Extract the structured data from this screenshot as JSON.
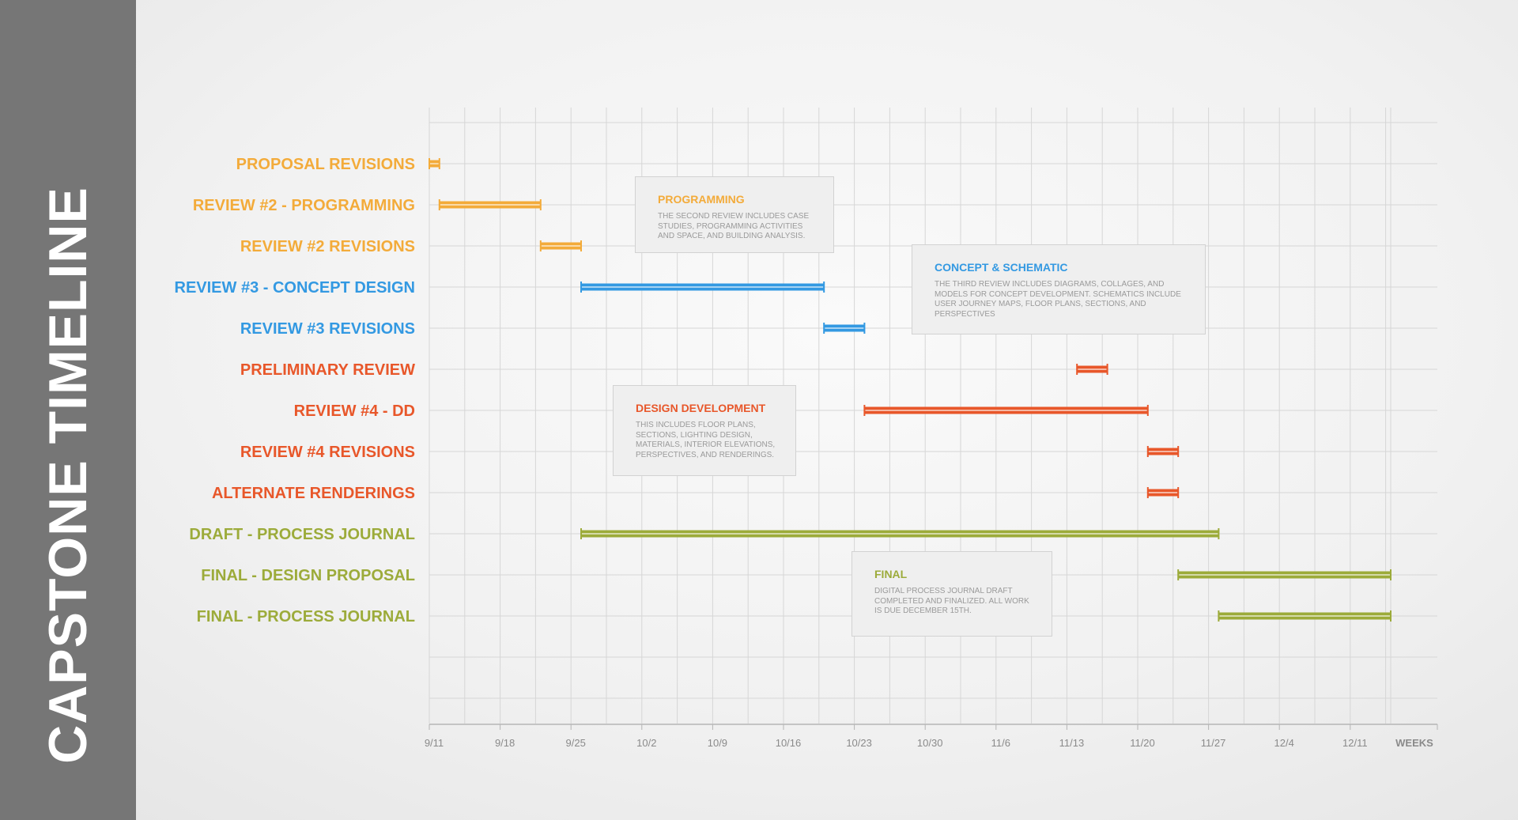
{
  "page_title": "CAPSTONE TIMELINE",
  "colors": {
    "orange": "#f3ab3a",
    "blue": "#3399e2",
    "red": "#e8572a",
    "green": "#9cab3a",
    "sidebar": "#767676",
    "grid": "#d6d6d6",
    "axis_text": "#8a8a8a"
  },
  "chart_data": {
    "type": "gantt",
    "title": "CAPSTONE TIMELINE",
    "xlabel": "WEEKS",
    "x_tick_labels": [
      "9/11",
      "9/18",
      "9/25",
      "10/2",
      "10/9",
      "10/16",
      "10/23",
      "10/30",
      "11/6",
      "11/13",
      "11/20",
      "11/27",
      "12/4",
      "12/11"
    ],
    "x_range": [
      "9/11",
      "12/15"
    ],
    "grid": "on",
    "tasks": [
      {
        "label": "PROPOSAL REVISIONS",
        "color": "orange",
        "start": "9/11",
        "end": "9/12"
      },
      {
        "label": "REVIEW #2 - PROGRAMMING",
        "color": "orange",
        "start": "9/12",
        "end": "9/22"
      },
      {
        "label": "REVIEW #2 REVISIONS",
        "color": "orange",
        "start": "9/22",
        "end": "9/26"
      },
      {
        "label": "REVIEW #3 - CONCEPT DESIGN",
        "color": "blue",
        "start": "9/26",
        "end": "10/20"
      },
      {
        "label": "REVIEW #3 REVISIONS",
        "color": "blue",
        "start": "10/20",
        "end": "10/24"
      },
      {
        "label": "PRELIMINARY REVIEW",
        "color": "red",
        "start": "11/14",
        "end": "11/17"
      },
      {
        "label": "REVIEW #4 - DD",
        "color": "red",
        "start": "10/24",
        "end": "11/21"
      },
      {
        "label": "REVIEW #4 REVISIONS",
        "color": "red",
        "start": "11/21",
        "end": "11/24"
      },
      {
        "label": "ALTERNATE RENDERINGS",
        "color": "red",
        "start": "11/21",
        "end": "11/24"
      },
      {
        "label": "DRAFT - PROCESS  JOURNAL",
        "color": "green",
        "start": "9/26",
        "end": "11/28"
      },
      {
        "label": "FINAL - DESIGN PROPOSAL",
        "color": "green",
        "start": "11/24",
        "end": "12/15"
      },
      {
        "label": "FINAL - PROCESS JOURNAL",
        "color": "green",
        "start": "11/28",
        "end": "12/15"
      }
    ]
  },
  "annotations": [
    {
      "title": "PROGRAMMING",
      "color": "orange",
      "body": "THE SECOND REVIEW INCLUDES CASE STUDIES, PROGRAMMING ACTIVITIES AND SPACE, AND BUILDING ANALYSIS."
    },
    {
      "title": "CONCEPT & SCHEMATIC",
      "color": "blue",
      "body": "THE THIRD REVIEW INCLUDES DIAGRAMS,  COLLAGES, AND MODELS FOR CONCEPT DEVELOPMENT. SCHEMATICS INCLUDE USER JOURNEY MAPS, FLOOR PLANS, SECTIONS, AND PERSPECTIVES"
    },
    {
      "title": "DESIGN DEVELOPMENT",
      "color": "red",
      "body": "THIS  INCLUDES FLOOR PLANS, SECTIONS, LIGHTING DESIGN, MATERIALS, INTERIOR ELEVATIONS, PERSPECTIVES, AND RENDERINGS."
    },
    {
      "title": "FINAL",
      "color": "green",
      "body": "DIGITAL PROCESS JOURNAL DRAFT COMPLETED AND FINALIZED. ALL WORK IS DUE DECEMBER 15TH."
    }
  ]
}
